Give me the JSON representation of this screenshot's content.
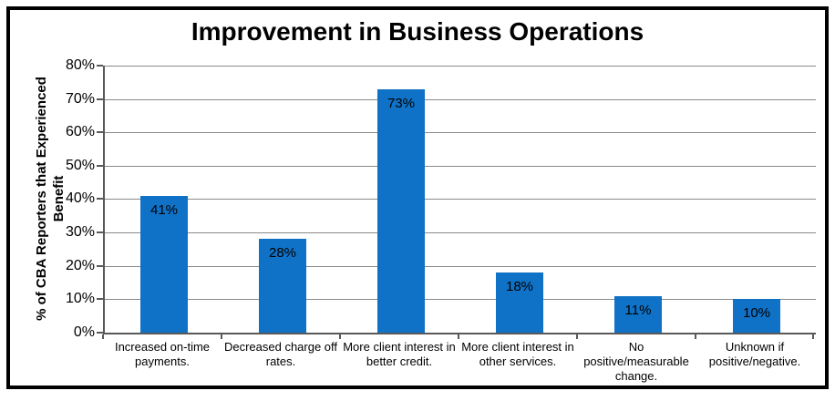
{
  "chart_data": {
    "type": "bar",
    "title": "Improvement in Business Operations",
    "ylabel": "% of CBA Reporters that Experienced Benefit",
    "xlabel": "",
    "categories": [
      "Increased on-time payments.",
      "Decreased charge off rates.",
      "More client interest in better credit.",
      "More client interest in other services.",
      "No positive/measurable change.",
      "Unknown if positive/negative."
    ],
    "category_lines": [
      [
        "Increased on-time",
        "payments."
      ],
      [
        "Decreased charge off",
        "rates."
      ],
      [
        "More client interest in",
        "better credit."
      ],
      [
        "More client interest in",
        "other services."
      ],
      [
        "No",
        "positive/measurable",
        "change."
      ],
      [
        "Unknown if",
        "positive/negative."
      ]
    ],
    "values": [
      41,
      28,
      73,
      18,
      11,
      10
    ],
    "data_labels": [
      "41%",
      "28%",
      "73%",
      "18%",
      "11%",
      "10%"
    ],
    "ylim": [
      0,
      80
    ],
    "ytick_step": 10,
    "ytick_labels": [
      "0%",
      "10%",
      "20%",
      "30%",
      "40%",
      "50%",
      "60%",
      "70%",
      "80%"
    ],
    "grid": "horizontal",
    "legend": "none"
  },
  "colors": {
    "bar": "#1072C6",
    "gridline": "#8A8A8A",
    "axis": "#595959",
    "text": "#000000",
    "frame_border": "#000000",
    "background": "#FFFFFF"
  }
}
